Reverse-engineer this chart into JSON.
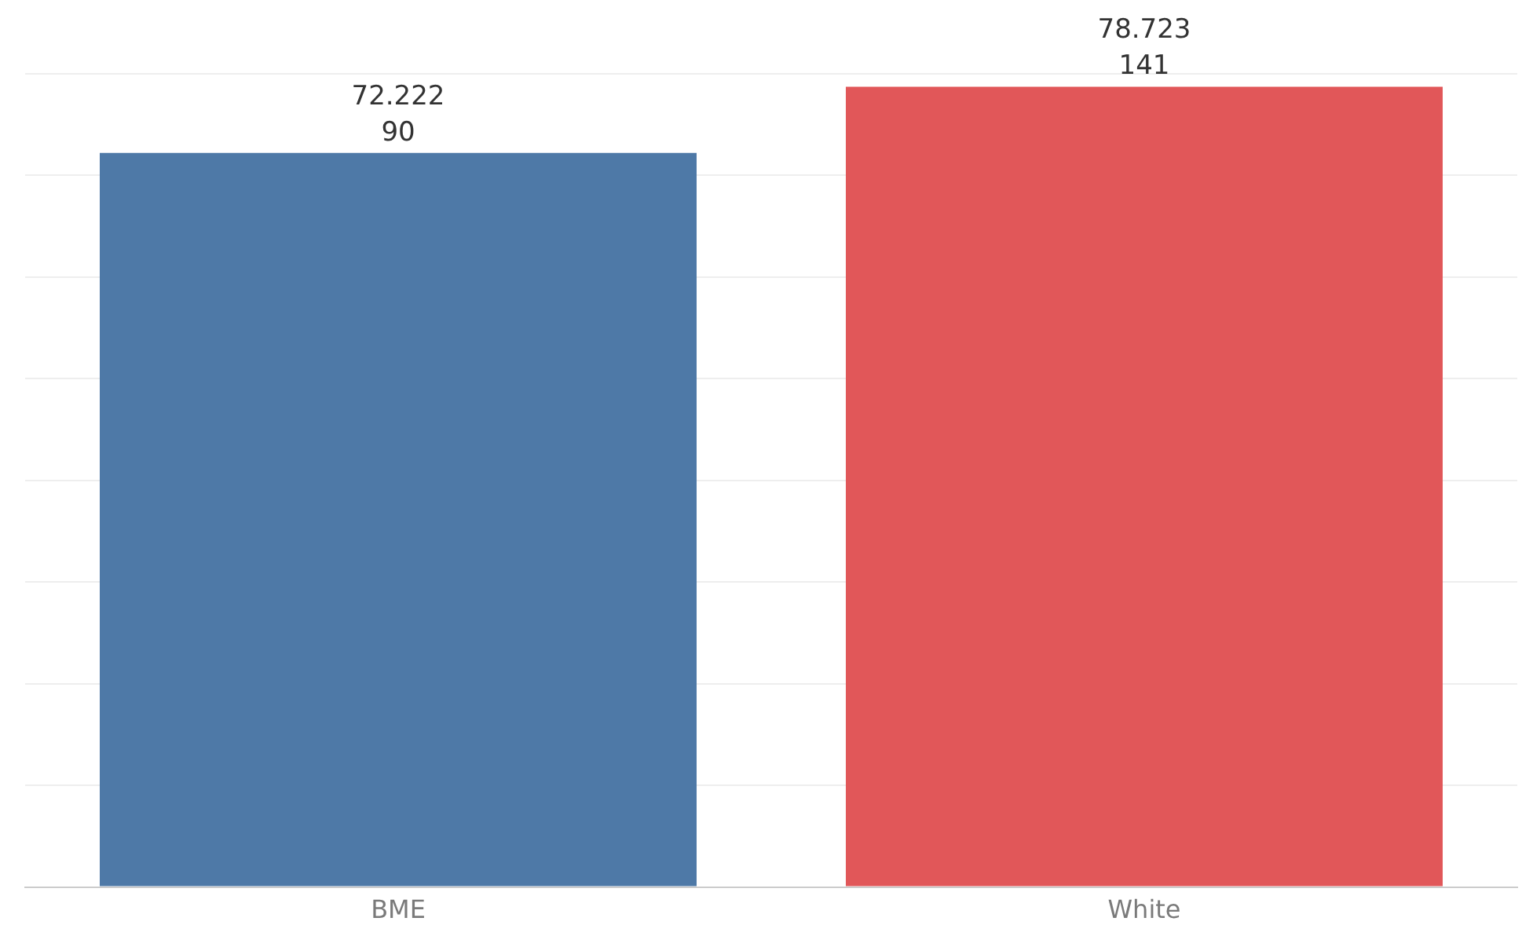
{
  "chart_data": {
    "type": "bar",
    "categories": [
      "BME",
      "White"
    ],
    "values": [
      72.222,
      78.723
    ],
    "colors": [
      "#4e79a7",
      "#e15759"
    ],
    "ylim": [
      0,
      80
    ],
    "yticks": [
      {
        "value": 0,
        "label": null
      },
      {
        "value": 10,
        "label": null
      },
      {
        "value": 20,
        "label": null
      },
      {
        "value": 30,
        "label": null
      },
      {
        "value": 40,
        "label": null
      },
      {
        "value": 50,
        "label": null
      },
      {
        "value": 60,
        "label": null
      },
      {
        "value": 70,
        "label": null
      },
      {
        "value": 80,
        "label": null
      }
    ],
    "tick_labels": "x",
    "grid": "y",
    "legend": false,
    "data_labels": true,
    "annotations": [
      {
        "text": "90",
        "x": "BME",
        "y": 72.222
      },
      {
        "text": "141",
        "x": "White",
        "y": 78.723
      }
    ]
  }
}
